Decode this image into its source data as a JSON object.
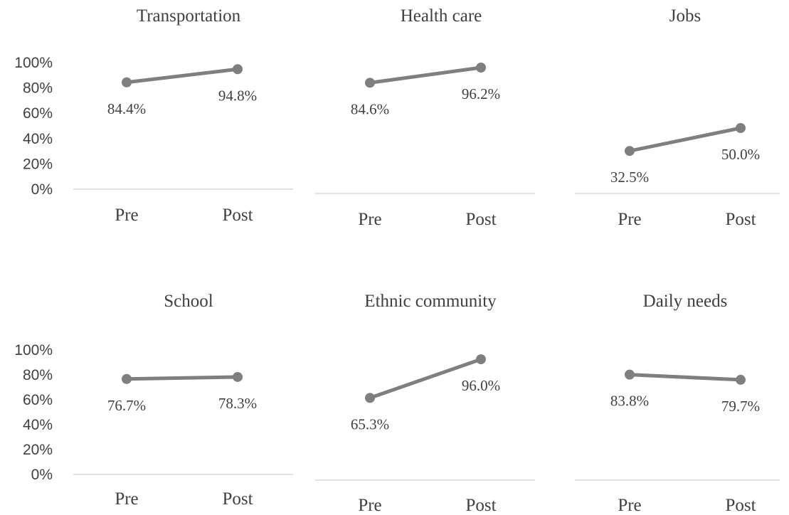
{
  "colors": {
    "series": "#7f7f7f",
    "axis": "#d9d9d9",
    "text": "#404040"
  },
  "chart_data": [
    {
      "type": "line",
      "title": "Transportation",
      "categories": [
        "Pre",
        "Post"
      ],
      "values": [
        84.4,
        94.8
      ],
      "data_labels": [
        "84.4%",
        "94.8%"
      ],
      "ylim": [
        0,
        100
      ],
      "yticks": [
        "0%",
        "20%",
        "40%",
        "60%",
        "80%",
        "100%"
      ],
      "y_axis_shown": true,
      "grid": false,
      "legend": "none"
    },
    {
      "type": "line",
      "title": "Health care",
      "categories": [
        "Pre",
        "Post"
      ],
      "values": [
        84.6,
        96.2
      ],
      "data_labels": [
        "84.6%",
        "96.2%"
      ],
      "ylim": [
        0,
        100
      ],
      "y_axis_shown": false,
      "grid": false,
      "legend": "none"
    },
    {
      "type": "line",
      "title": "Jobs",
      "categories": [
        "Pre",
        "Post"
      ],
      "values": [
        32.5,
        50.0
      ],
      "data_labels": [
        "32.5%",
        "50.0%"
      ],
      "ylim": [
        0,
        100
      ],
      "y_axis_shown": false,
      "grid": false,
      "legend": "none"
    },
    {
      "type": "line",
      "title": "School",
      "categories": [
        "Pre",
        "Post"
      ],
      "values": [
        76.7,
        78.3
      ],
      "data_labels": [
        "76.7%",
        "78.3%"
      ],
      "ylim": [
        0,
        100
      ],
      "yticks": [
        "0%",
        "20%",
        "40%",
        "60%",
        "80%",
        "100%"
      ],
      "y_axis_shown": true,
      "grid": false,
      "legend": "none"
    },
    {
      "type": "line",
      "title": "Ethnic community",
      "categories": [
        "Pre",
        "Post"
      ],
      "values": [
        65.3,
        96.0
      ],
      "data_labels": [
        "65.3%",
        "96.0%"
      ],
      "ylim": [
        0,
        100
      ],
      "y_axis_shown": false,
      "grid": false,
      "legend": "none"
    },
    {
      "type": "line",
      "title": "Daily needs",
      "categories": [
        "Pre",
        "Post"
      ],
      "values": [
        83.8,
        79.7
      ],
      "data_labels": [
        "83.8%",
        "79.7%"
      ],
      "ylim": [
        0,
        100
      ],
      "y_axis_shown": false,
      "grid": false,
      "legend": "none"
    }
  ]
}
